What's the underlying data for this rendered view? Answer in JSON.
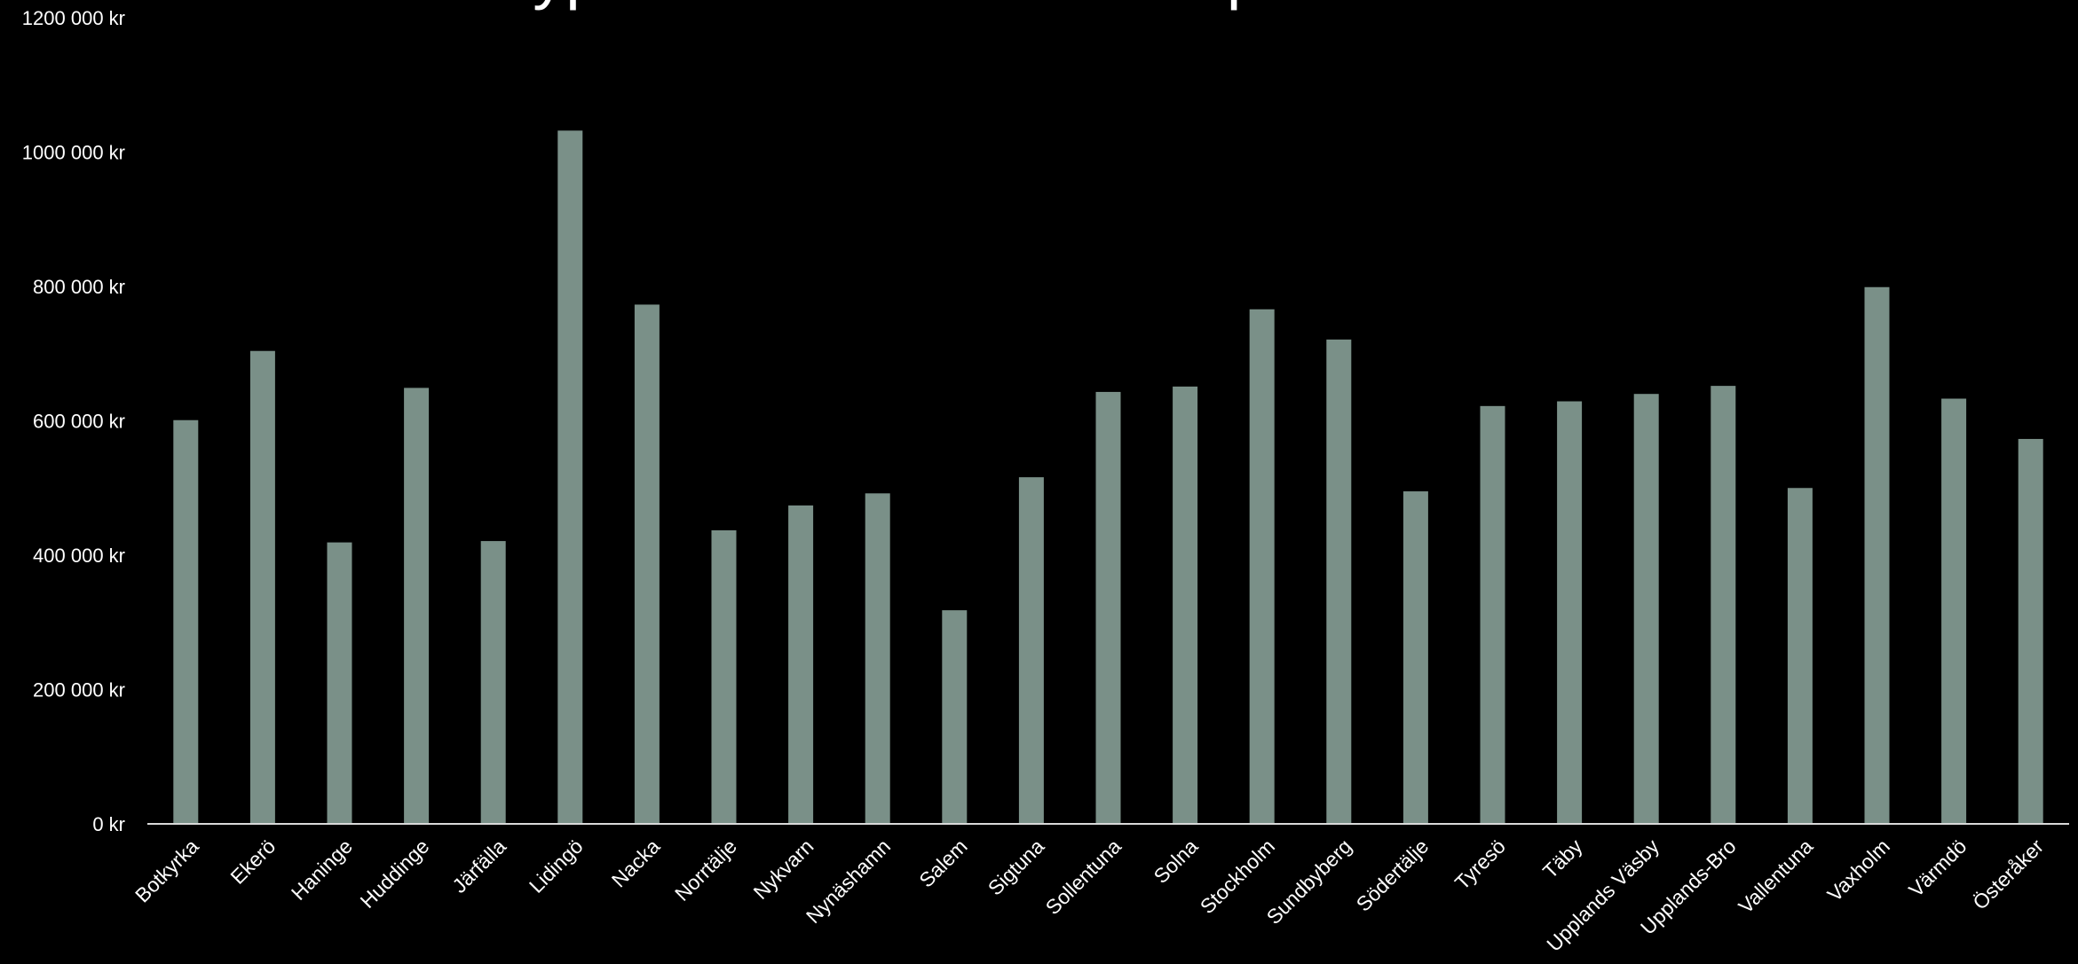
{
  "chart_data": {
    "type": "bar",
    "title": "Nyproducerade bostäder per kommun",
    "xlabel": "",
    "ylabel": "",
    "ylim": [
      0,
      1200000
    ],
    "yticks": [
      0,
      200000,
      400000,
      600000,
      800000,
      1000000,
      1200000
    ],
    "ytick_labels": [
      "0 kr",
      "200 000 kr",
      "400 000 kr",
      "600 000 kr",
      "800 000 kr",
      "1000 000 kr",
      "1200 000 kr"
    ],
    "grid": false,
    "legend": "none",
    "bar_color": "#7a9088",
    "categories": [
      "Botkyrka",
      "Ekerö",
      "Haninge",
      "Huddinge",
      "Järfälla",
      "Lidingö",
      "Nacka",
      "Norrtälje",
      "Nykvarn",
      "Nynäshamn",
      "Salem",
      "Sigtuna",
      "Sollentuna",
      "Solna",
      "Stockholm",
      "Sundbyberg",
      "Södertälje",
      "Tyresö",
      "Täby",
      "Upplands Väsby",
      "Upplands-Bro",
      "Vallentuna",
      "Vaxholm",
      "Värmdö",
      "Österåker"
    ],
    "values": [
      601000,
      704000,
      419000,
      649000,
      421000,
      1032000,
      773000,
      437000,
      474000,
      492000,
      318000,
      516000,
      643000,
      651000,
      766000,
      721000,
      495000,
      622000,
      629000,
      640000,
      652000,
      500000,
      799000,
      633000,
      573000
    ]
  }
}
